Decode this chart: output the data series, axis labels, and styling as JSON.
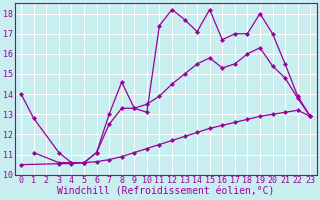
{
  "background_color": "#c8eef0",
  "line_color": "#990099",
  "grid_color": "#ffffff",
  "xlabel": "Windchill (Refroidissement éolien,°C)",
  "xlabel_fontsize": 7.0,
  "tick_fontsize": 6.0,
  "ylim": [
    10,
    18.5
  ],
  "xlim": [
    -0.5,
    23.5
  ],
  "yticks": [
    10,
    11,
    12,
    13,
    14,
    15,
    16,
    17,
    18
  ],
  "xticks": [
    0,
    1,
    2,
    3,
    4,
    5,
    6,
    7,
    8,
    9,
    10,
    11,
    12,
    13,
    14,
    15,
    16,
    17,
    18,
    19,
    20,
    21,
    22,
    23
  ],
  "line1_x": [
    0,
    1,
    3,
    4,
    5,
    6,
    7,
    8,
    9,
    10,
    11,
    12,
    13,
    14,
    15,
    16,
    17,
    18,
    19,
    20,
    21,
    22,
    23
  ],
  "line1_y": [
    14.0,
    12.8,
    11.1,
    10.6,
    10.6,
    11.1,
    13.0,
    14.6,
    13.3,
    13.1,
    17.4,
    18.2,
    17.7,
    17.1,
    18.2,
    16.7,
    17.0,
    17.0,
    18.0,
    17.0,
    15.5,
    13.9,
    12.9
  ],
  "line2_x": [
    1,
    3,
    4,
    5,
    6,
    7,
    8,
    9,
    10,
    11,
    12,
    13,
    14,
    15,
    16,
    17,
    18,
    19,
    20,
    21,
    22,
    23
  ],
  "line2_y": [
    11.1,
    10.6,
    10.6,
    10.6,
    11.1,
    12.5,
    13.3,
    13.3,
    13.5,
    13.9,
    14.5,
    15.0,
    15.5,
    15.8,
    15.3,
    15.5,
    16.0,
    16.3,
    15.4,
    14.8,
    13.8,
    12.9
  ],
  "line3_x": [
    0,
    3,
    4,
    5,
    6,
    7,
    8,
    9,
    10,
    11,
    12,
    13,
    14,
    15,
    16,
    17,
    18,
    19,
    20,
    21,
    22,
    23
  ],
  "line3_y": [
    10.5,
    10.55,
    10.55,
    10.6,
    10.65,
    10.75,
    10.9,
    11.1,
    11.3,
    11.5,
    11.7,
    11.9,
    12.1,
    12.3,
    12.45,
    12.6,
    12.75,
    12.9,
    13.0,
    13.1,
    13.2,
    12.9
  ]
}
